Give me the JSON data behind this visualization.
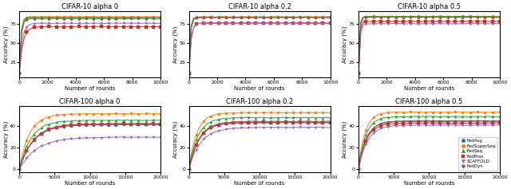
{
  "titles": [
    "CIFAR-10 alpha 0",
    "CIFAR-10 alpha 0.2",
    "CIFAR-10 alpha 0.5",
    "CIFAR-100 alpha 0",
    "CIFAR-100 alpha 0.2",
    "CIFAR-100 alpha 0.5"
  ],
  "legend_labels": [
    "FedAvg",
    "FedSuperSeq",
    "FedSeq",
    "FedProx",
    "SCAFFOLD",
    "FedDyn"
  ],
  "colors": [
    "#1f77b4",
    "#ff7f0e",
    "#2ca02c",
    "#d62728",
    "#9467bd",
    "#8c564b"
  ],
  "markers": [
    "o",
    "o",
    "^",
    "s",
    "v",
    "P"
  ],
  "ylabel": "Accuracy (%)",
  "xlabel": "Number of rounds",
  "subplots": [
    {
      "x_max": 10000,
      "ylim": [
        5,
        92
      ],
      "yticks": [
        25,
        50,
        75
      ],
      "xticks": [
        0,
        2000,
        4000,
        6000,
        8000,
        10000
      ],
      "curves": [
        {
          "y0": 10,
          "yf": 84.0,
          "k": 0.008
        },
        {
          "y0": 10,
          "yf": 84.5,
          "k": 0.009
        },
        {
          "y0": 10,
          "yf": 83.5,
          "k": 0.009
        },
        {
          "y0": 10,
          "yf": 71.5,
          "k": 0.004
        },
        {
          "y0": 10,
          "yf": 76.0,
          "k": 0.005
        },
        {
          "y0": 10,
          "yf": 82.0,
          "k": 0.008
        }
      ]
    },
    {
      "x_max": 10000,
      "ylim": [
        5,
        92
      ],
      "yticks": [
        25,
        50,
        75
      ],
      "xticks": [
        0,
        2000,
        4000,
        6000,
        8000,
        10000
      ],
      "curves": [
        {
          "y0": 10,
          "yf": 84.0,
          "k": 0.01
        },
        {
          "y0": 10,
          "yf": 84.5,
          "k": 0.011
        },
        {
          "y0": 10,
          "yf": 84.2,
          "k": 0.011
        },
        {
          "y0": 10,
          "yf": 76.5,
          "k": 0.007
        },
        {
          "y0": 10,
          "yf": 76.0,
          "k": 0.007
        },
        {
          "y0": 10,
          "yf": 83.5,
          "k": 0.01
        }
      ]
    },
    {
      "x_max": 10000,
      "ylim": [
        5,
        92
      ],
      "yticks": [
        25,
        50,
        75
      ],
      "xticks": [
        0,
        2000,
        4000,
        6000,
        8000,
        10000
      ],
      "curves": [
        {
          "y0": 10,
          "yf": 84.5,
          "k": 0.013
        },
        {
          "y0": 10,
          "yf": 85.0,
          "k": 0.014
        },
        {
          "y0": 10,
          "yf": 84.8,
          "k": 0.014
        },
        {
          "y0": 10,
          "yf": 78.5,
          "k": 0.012
        },
        {
          "y0": 10,
          "yf": 75.5,
          "k": 0.01
        },
        {
          "y0": 10,
          "yf": 84.0,
          "k": 0.013
        }
      ]
    },
    {
      "x_max": 20000,
      "ylim": [
        -3,
        58
      ],
      "yticks": [
        0,
        20,
        40
      ],
      "xticks": [
        0,
        5000,
        10000,
        15000,
        20000
      ],
      "curves": [
        {
          "y0": 0,
          "yf": 41.0,
          "k": 0.0005
        },
        {
          "y0": 0,
          "yf": 51.0,
          "k": 0.0007
        },
        {
          "y0": 0,
          "yf": 45.0,
          "k": 0.0006
        },
        {
          "y0": 0,
          "yf": 41.5,
          "k": 0.0005
        },
        {
          "y0": 0,
          "yf": 29.5,
          "k": 0.0004
        },
        {
          "y0": 0,
          "yf": 42.0,
          "k": 0.0005
        }
      ]
    },
    {
      "x_max": 20000,
      "ylim": [
        -3,
        58
      ],
      "yticks": [
        0,
        20,
        40
      ],
      "xticks": [
        0,
        5000,
        10000,
        15000,
        20000
      ],
      "curves": [
        {
          "y0": 0,
          "yf": 43.0,
          "k": 0.0007
        },
        {
          "y0": 0,
          "yf": 52.0,
          "k": 0.0009
        },
        {
          "y0": 0,
          "yf": 47.5,
          "k": 0.0008
        },
        {
          "y0": 0,
          "yf": 43.0,
          "k": 0.0007
        },
        {
          "y0": 0,
          "yf": 38.5,
          "k": 0.0006
        },
        {
          "y0": 0,
          "yf": 44.0,
          "k": 0.0007
        }
      ]
    },
    {
      "x_max": 20000,
      "ylim": [
        -3,
        58
      ],
      "yticks": [
        0,
        20,
        40
      ],
      "xticks": [
        0,
        5000,
        10000,
        15000,
        20000
      ],
      "curves": [
        {
          "y0": 0,
          "yf": 44.0,
          "k": 0.0009
        },
        {
          "y0": 0,
          "yf": 52.5,
          "k": 0.0011
        },
        {
          "y0": 0,
          "yf": 48.5,
          "k": 0.001
        },
        {
          "y0": 0,
          "yf": 42.5,
          "k": 0.0009
        },
        {
          "y0": 0,
          "yf": 40.5,
          "k": 0.0008
        },
        {
          "y0": 0,
          "yf": 44.5,
          "k": 0.0009
        }
      ]
    }
  ]
}
